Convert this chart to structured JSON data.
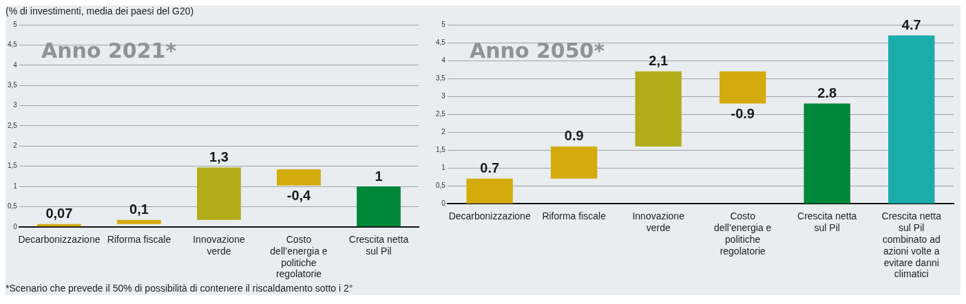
{
  "chart_data": [
    {
      "type": "bar",
      "title": "Anno 2021*",
      "subtitle": "(% di investimenti, media dei paesi del G20)",
      "categories": [
        "Decarbonizzazione",
        "Riforma fiscale",
        "Innovazione verde",
        "Costo dell’energia e politiche regolatorie",
        "Crescita netta sul Pil"
      ],
      "values": [
        0.07,
        0.1,
        1.3,
        -0.4,
        1
      ],
      "base": [
        0,
        0.07,
        0.17,
        1.42,
        0
      ],
      "colors": [
        "#d4ab0c",
        "#d4ab0c",
        "#b3ac1a",
        "#d4ab0c",
        "#00873a"
      ],
      "value_labels": [
        "0,07",
        "0,1",
        "1,3",
        "-0,4",
        "1"
      ],
      "ylim": [
        0,
        5
      ],
      "yticks": [
        0,
        {
          "value": 0.5,
          "label": "0,5"
        },
        1,
        {
          "value": 1.5,
          "label": "1,5"
        },
        2,
        {
          "value": 2.5,
          "label": "2,5"
        },
        3,
        {
          "value": 3.5,
          "label": "3,5"
        },
        4,
        {
          "value": 4.5,
          "label": "4,5"
        },
        5
      ],
      "grid": "y",
      "legend": false,
      "annotations": [
        "*Scenario che prevede il 50% di possibilità di contenere il riscaldamento sotto i 2°"
      ]
    },
    {
      "type": "bar",
      "title": "Anno 2050*",
      "categories": [
        "Decarbonizzazione",
        "Riforma fiscale",
        "Innovazione verde",
        "Costo dell’energia e politiche regolatorie",
        "Crescita netta sul Pil",
        "Crescita netta sul Pil combinato ad azioni volte a evitare danni climatici"
      ],
      "values": [
        0.7,
        0.9,
        2.1,
        -0.9,
        2.8,
        4.7
      ],
      "base": [
        0,
        0.7,
        1.6,
        3.7,
        0,
        0
      ],
      "colors": [
        "#d4ab0c",
        "#d4ab0c",
        "#b3ac1a",
        "#d4ab0c",
        "#00873a",
        "#1badaa"
      ],
      "value_labels": [
        "0.7",
        "0.9",
        "2,1",
        "-0.9",
        "2.8",
        "4.7"
      ],
      "ylim": [
        0,
        5
      ],
      "yticks": [
        0,
        {
          "value": 0.5,
          "label": "0,5"
        },
        1,
        {
          "value": 1.5,
          "label": "1,5"
        },
        2,
        {
          "value": 2.5,
          "label": "2,5"
        },
        3,
        {
          "value": 3.5,
          "label": "3,5"
        },
        4,
        {
          "value": 4.5,
          "label": "4,5"
        },
        5
      ],
      "grid": "y",
      "legend": false
    }
  ]
}
